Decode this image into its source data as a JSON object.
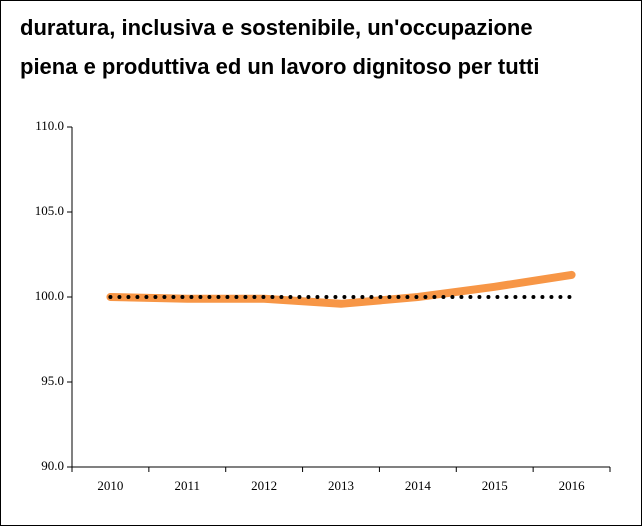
{
  "chart_data": {
    "type": "line",
    "title": [
      "duratura, inclusiva e sostenibile, un'occupazione",
      "piena e produttiva ed un lavoro dignitoso per tutti"
    ],
    "categories": [
      "2010",
      "2011",
      "2012",
      "2013",
      "2014",
      "2015",
      "2016"
    ],
    "series": [
      {
        "color": "#f79646",
        "style": "solid",
        "values": [
          100.0,
          99.9,
          99.9,
          99.6,
          100.0,
          100.6,
          101.3
        ]
      },
      {
        "color": "#000000",
        "style": "dotted",
        "values": [
          100.0,
          100.0,
          100.0,
          100.0,
          100.0,
          100.0,
          100.0
        ]
      }
    ],
    "ylim": [
      90,
      110
    ],
    "yticks": [
      {
        "value": 90,
        "label": "90.0"
      },
      {
        "value": 95,
        "label": "95.0"
      },
      {
        "value": 100,
        "label": "100.0"
      },
      {
        "value": 105,
        "label": "105.0"
      },
      {
        "value": 110,
        "label": "110.0"
      }
    ],
    "grid": false
  }
}
